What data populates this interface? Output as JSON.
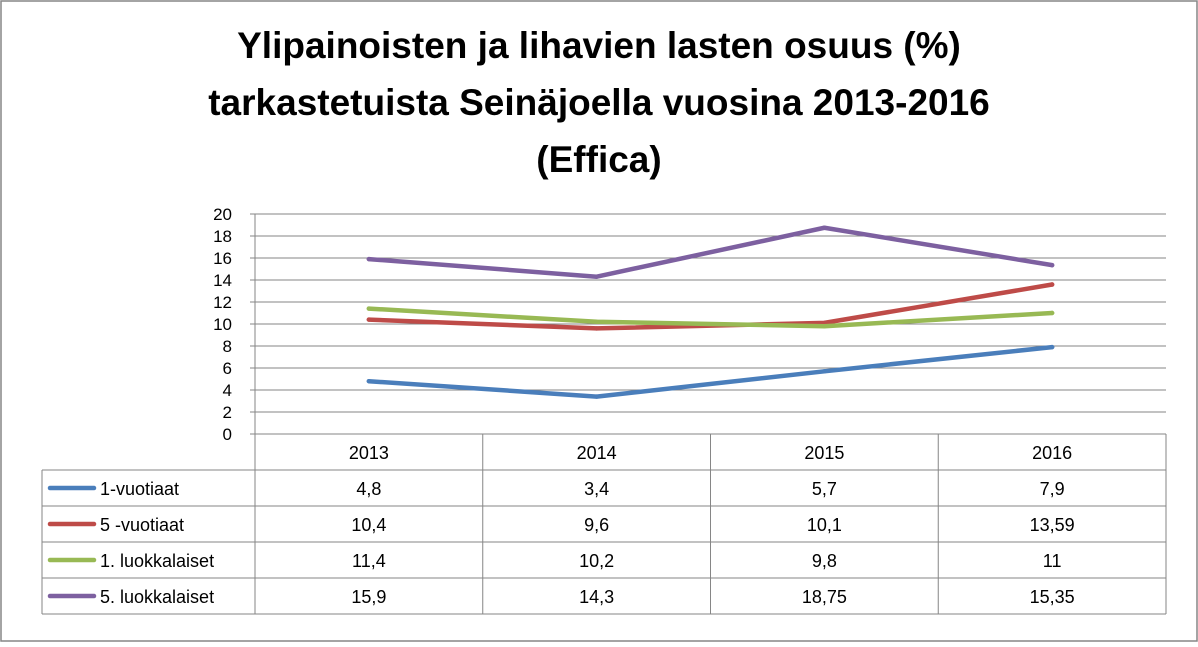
{
  "chart_data": {
    "type": "line",
    "title_lines": [
      "Ylipainoisten ja lihavien lasten osuus (%)",
      "tarkastetuista Seinäjoella vuosina 2013-2016",
      "(Effica)"
    ],
    "categories": [
      "2013",
      "2014",
      "2015",
      "2016"
    ],
    "ylim": [
      0,
      20
    ],
    "yticks": [
      "0",
      "2",
      "4",
      "6",
      "8",
      "10",
      "12",
      "14",
      "16",
      "18",
      "20"
    ],
    "grid": true,
    "legend": "data-table",
    "series": [
      {
        "name": "1-vuotiaat",
        "color": "#4a7ebb",
        "values": [
          4.8,
          3.4,
          5.7,
          7.9
        ],
        "labels": [
          "4,8",
          "3,4",
          "5,7",
          "7,9"
        ]
      },
      {
        "name": "5 -vuotiaat",
        "color": "#be4b48",
        "values": [
          10.4,
          9.6,
          10.1,
          13.59
        ],
        "labels": [
          "10,4",
          "9,6",
          "10,1",
          "13,59"
        ]
      },
      {
        "name": "1. luokkalaiset",
        "color": "#98b954",
        "values": [
          11.4,
          10.2,
          9.8,
          11
        ],
        "labels": [
          "11,4",
          "10,2",
          "9,8",
          "11"
        ]
      },
      {
        "name": "5. luokkalaiset",
        "color": "#7d60a0",
        "values": [
          15.9,
          14.3,
          18.75,
          15.35
        ],
        "labels": [
          "15,9",
          "14,3",
          "18,75",
          "15,35"
        ]
      }
    ]
  }
}
